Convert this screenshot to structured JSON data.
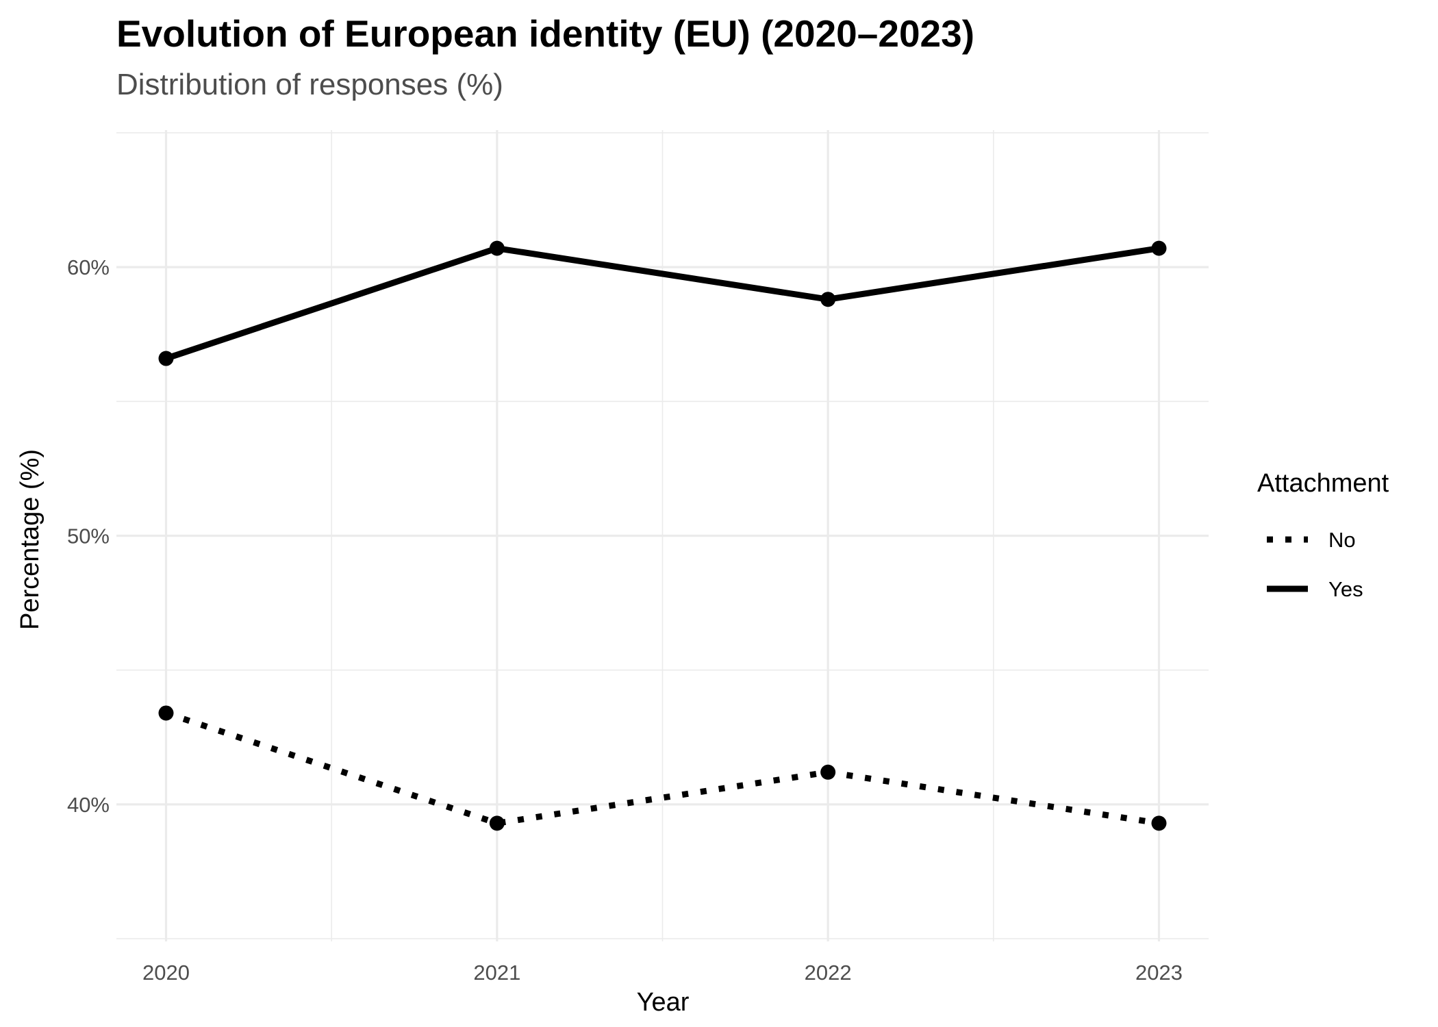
{
  "chart_data": {
    "type": "line",
    "title": "Evolution of European identity (EU) (2020–2023)",
    "subtitle": "Distribution of responses (%)",
    "xlabel": "Year",
    "ylabel": "Percentage (%)",
    "x": [
      2020,
      2021,
      2022,
      2023
    ],
    "x_tick_labels": [
      "2020",
      "2021",
      "2022",
      "2023"
    ],
    "y_ticks": [
      40,
      50,
      60
    ],
    "y_tick_labels": [
      "40%",
      "50%",
      "60%"
    ],
    "ylim": [
      34.9,
      65.1
    ],
    "xlim": [
      2019.85,
      2023.15
    ],
    "grid": true,
    "legend": {
      "title": "Attachment",
      "placement": "right"
    },
    "series": [
      {
        "name": "No",
        "line_style": "dotted",
        "color": "#000000",
        "values": [
          43.4,
          39.3,
          41.2,
          39.3
        ]
      },
      {
        "name": "Yes",
        "line_style": "solid",
        "color": "#000000",
        "values": [
          56.6,
          60.7,
          58.8,
          60.7
        ]
      }
    ]
  }
}
